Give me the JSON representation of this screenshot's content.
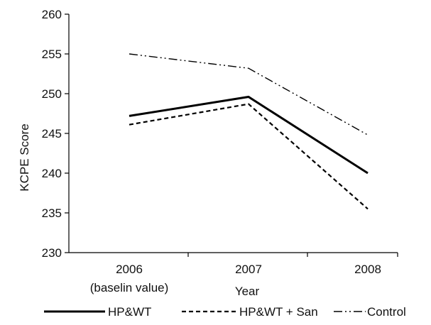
{
  "chart_data": {
    "type": "line",
    "categories": [
      "2006",
      "2007",
      "2008"
    ],
    "category_sublabels": [
      "(baselin value)",
      "",
      ""
    ],
    "xlabel": "Year",
    "ylabel": "KCPE Score",
    "ylim": [
      230,
      260
    ],
    "yticks": [
      230,
      235,
      240,
      245,
      250,
      255,
      260
    ],
    "grid": false,
    "legend_position": "bottom",
    "series": [
      {
        "name": "HP&WT",
        "values": [
          247.2,
          249.6,
          240.0
        ],
        "style": "solid",
        "color": "#000000"
      },
      {
        "name": "HP&WT + San",
        "values": [
          246.1,
          248.7,
          235.5
        ],
        "style": "dashed",
        "color": "#000000"
      },
      {
        "name": "Control",
        "values": [
          255.0,
          253.2,
          244.8
        ],
        "style": "dashdotdot",
        "color": "#000000"
      }
    ]
  }
}
